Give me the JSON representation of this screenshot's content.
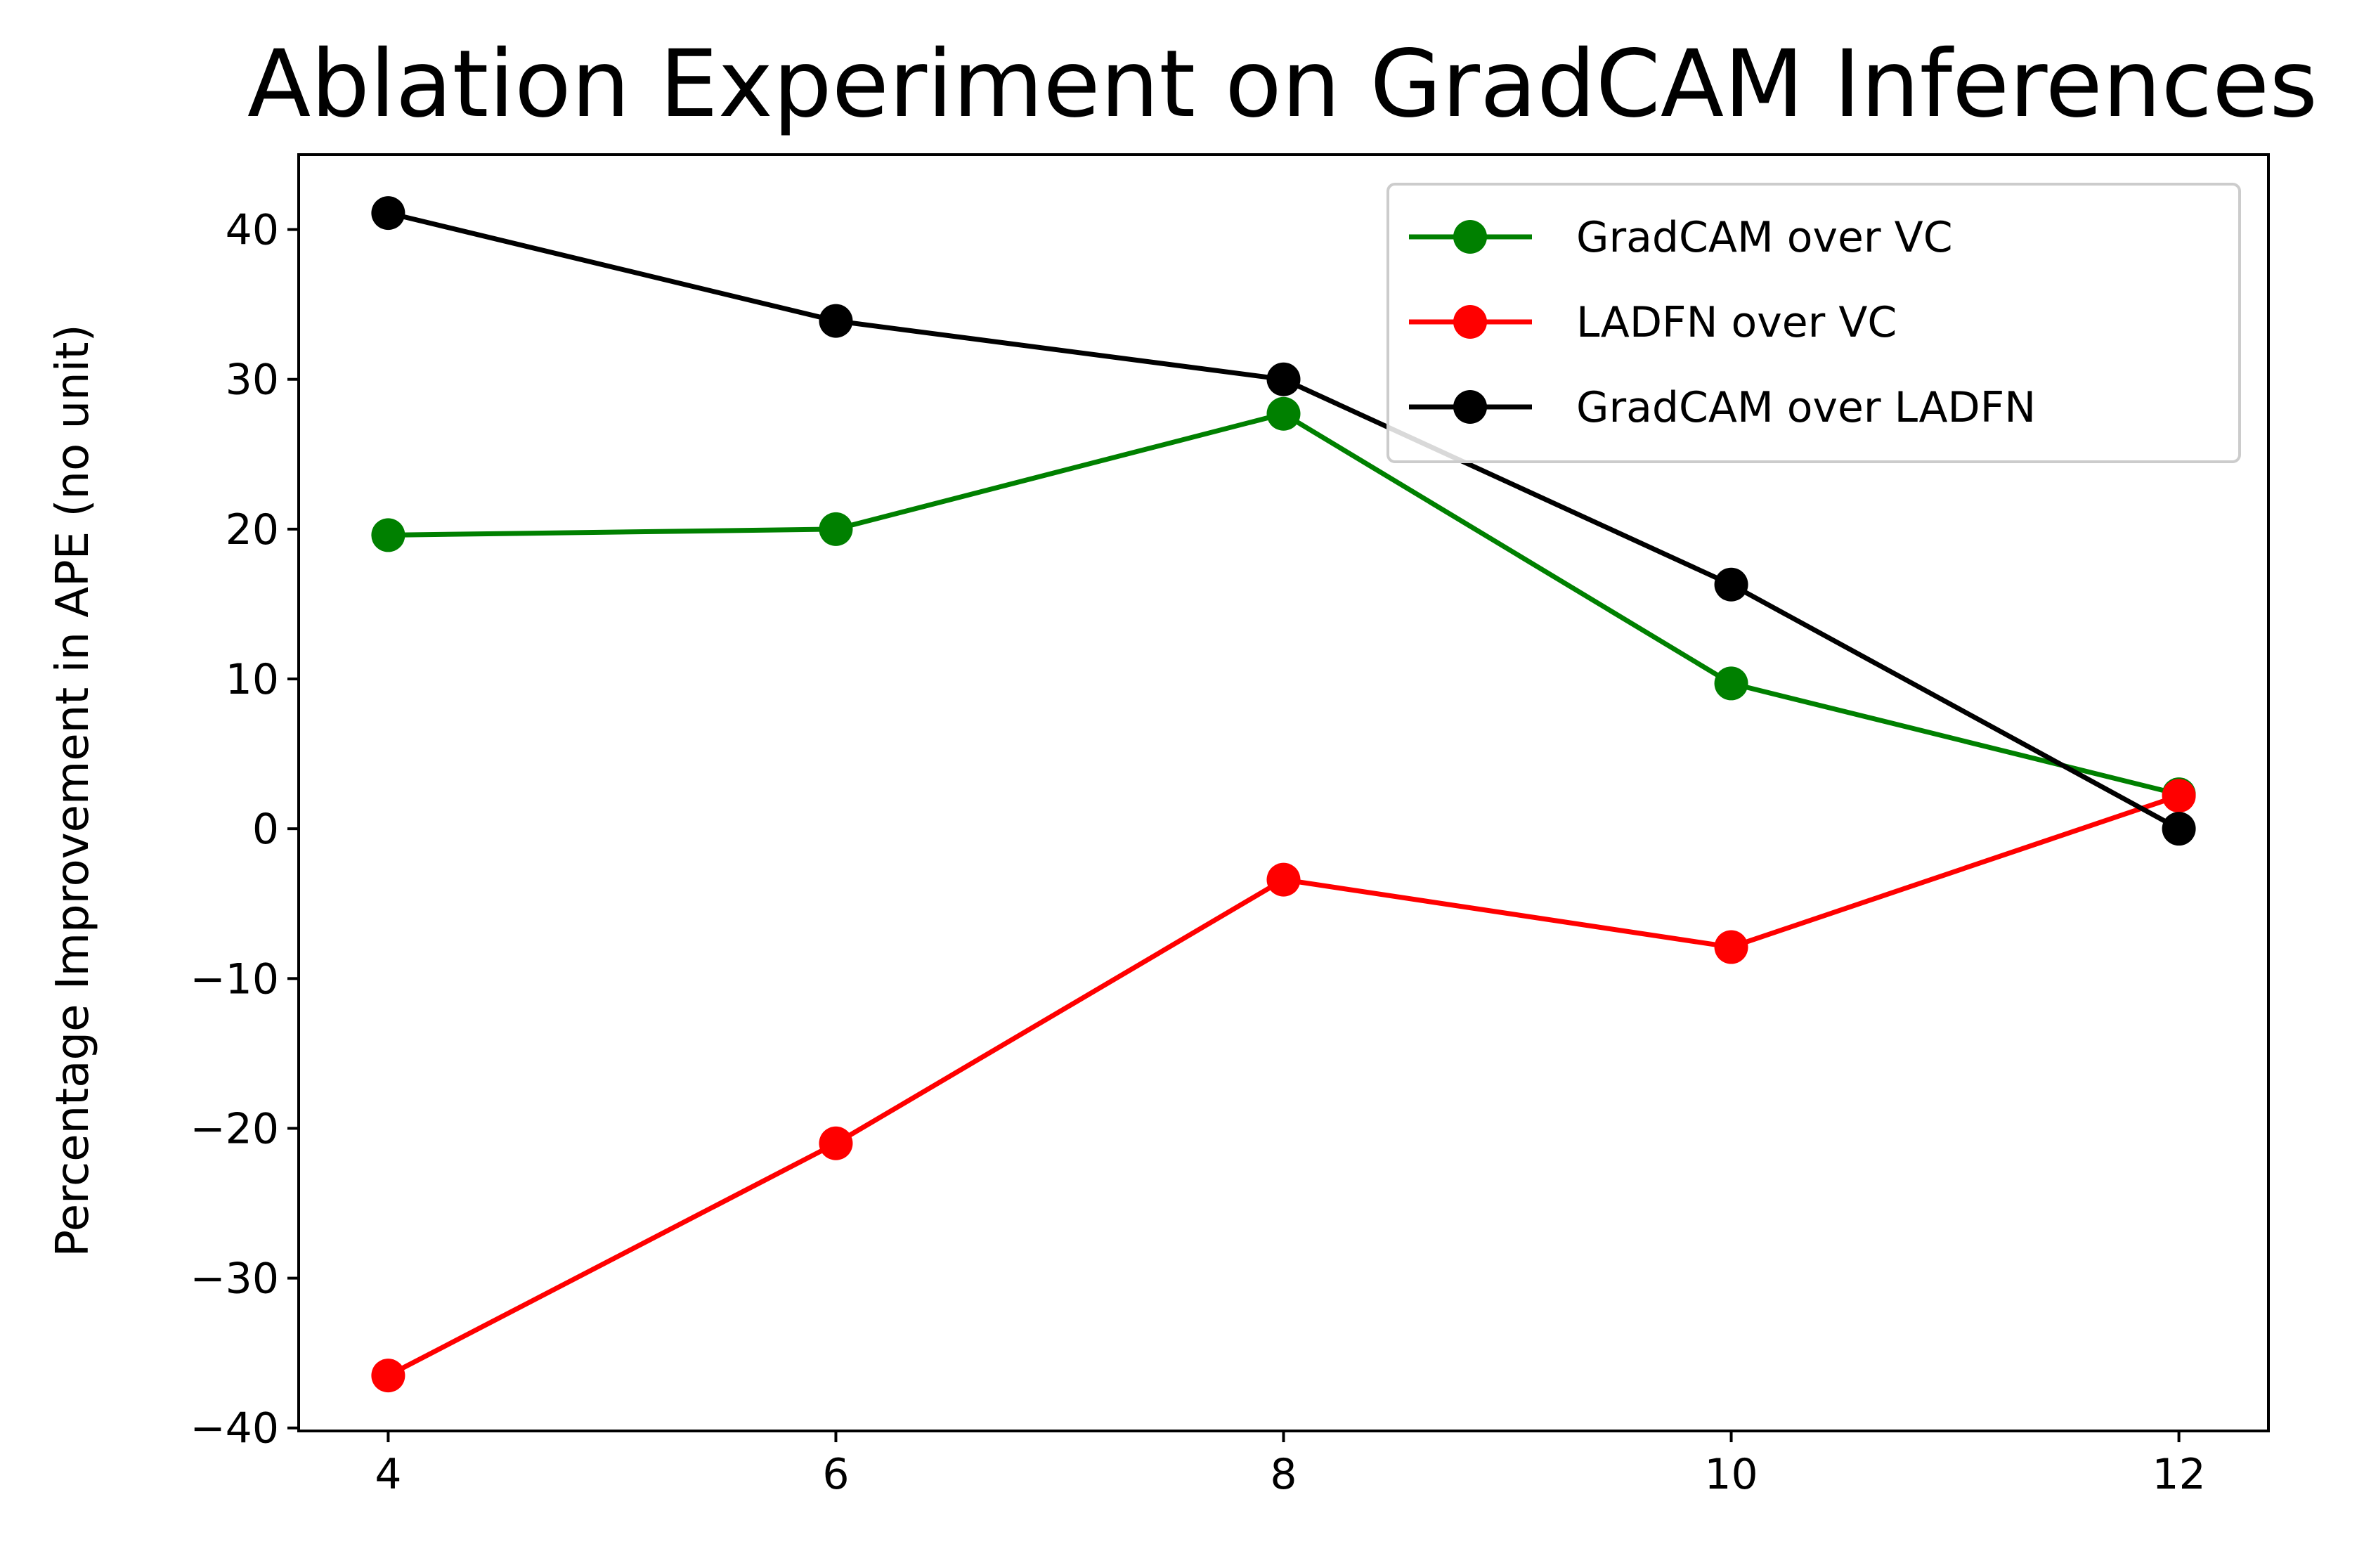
{
  "chart_data": {
    "type": "line",
    "title": "Ablation Experiment on GradCAM Inferences",
    "xlabel": "",
    "ylabel": "Percentage Improvement in APE (no unit)",
    "x": [
      4,
      6,
      8,
      10,
      12
    ],
    "x_ticks": [
      "4",
      "6",
      "8",
      "10",
      "12"
    ],
    "y_ticks": [
      "40",
      "30",
      "20",
      "10",
      "0",
      "−10",
      "−20",
      "−30",
      "−40"
    ],
    "xlim": [
      3.6,
      12.4
    ],
    "ylim": [
      -40.2,
      45
    ],
    "grid": false,
    "legend_position": "top-right",
    "series": [
      {
        "name": "GradCAM over VC",
        "color": "#008000",
        "values": [
          19.6,
          20.0,
          27.7,
          9.7,
          2.3
        ]
      },
      {
        "name": "LADFN over VC",
        "color": "#ff0000",
        "values": [
          -36.5,
          -21.0,
          -3.4,
          -7.9,
          2.2
        ]
      },
      {
        "name": "GradCAM over LADFN",
        "color": "#000000",
        "values": [
          41.1,
          33.9,
          30.0,
          16.3,
          0.0
        ]
      }
    ]
  }
}
